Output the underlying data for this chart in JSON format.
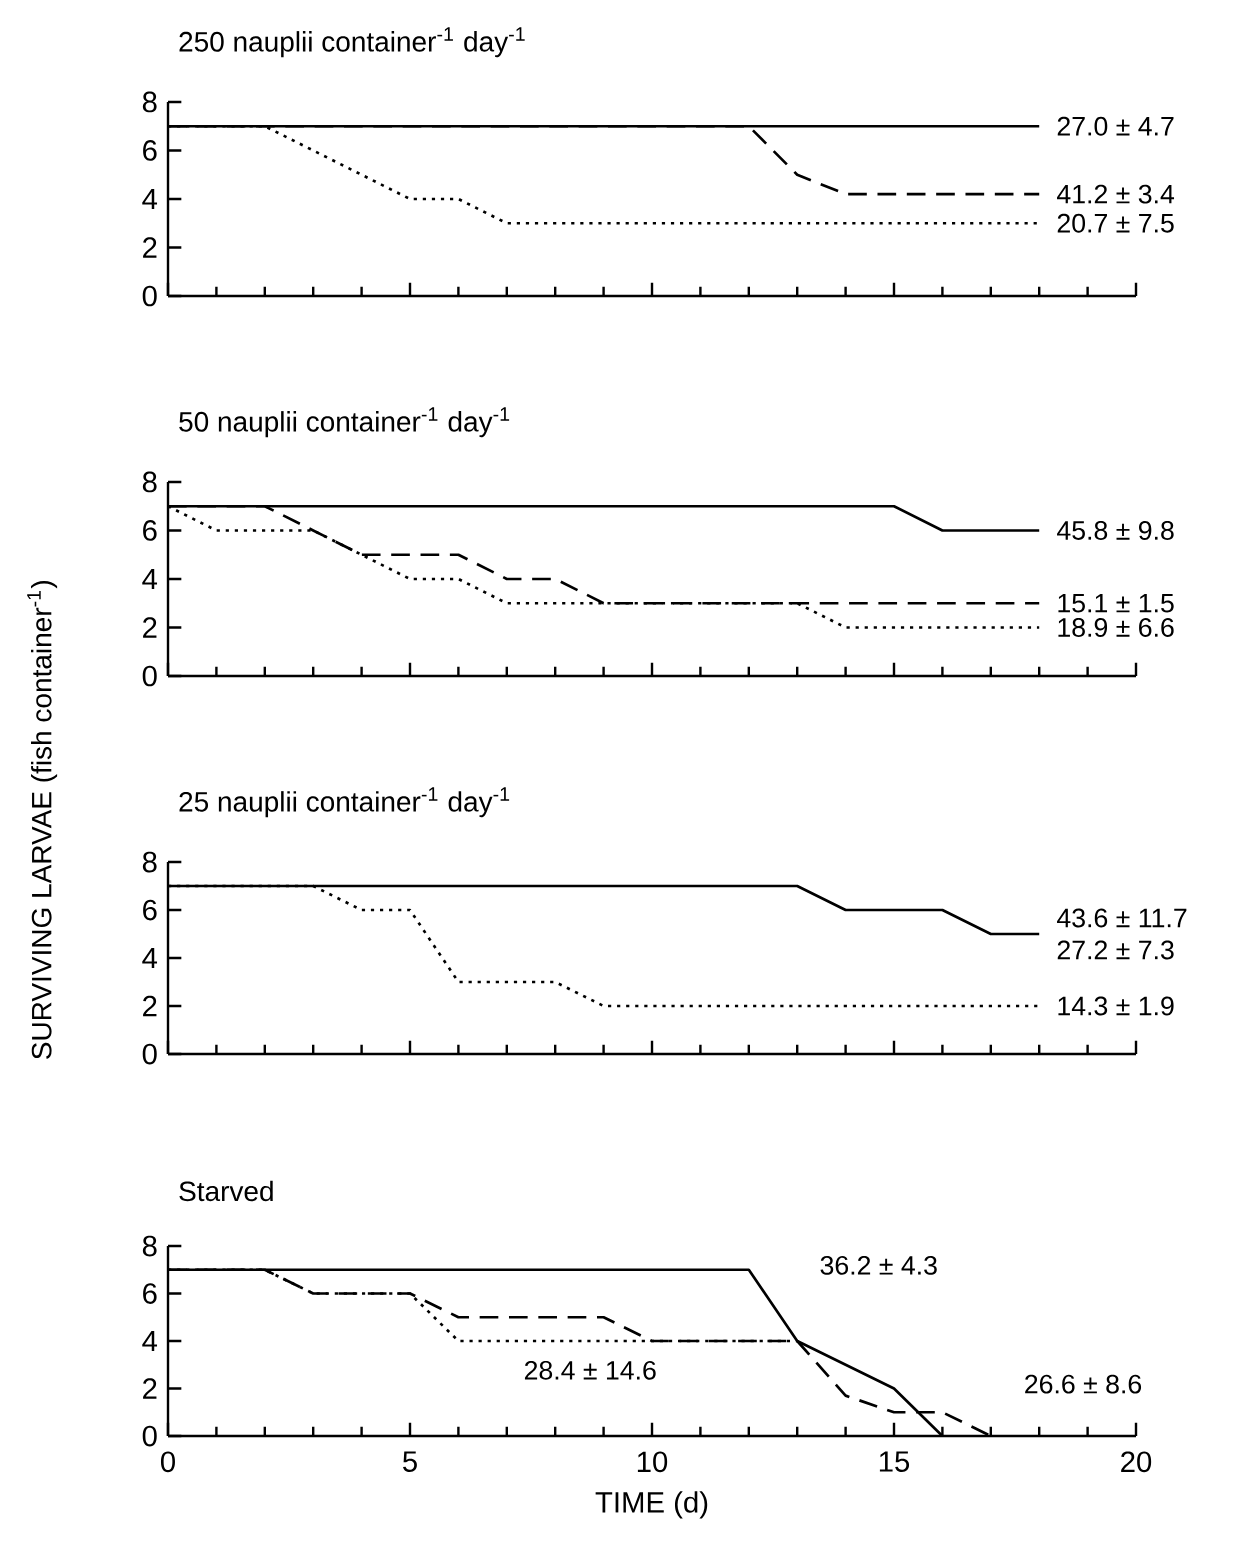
{
  "chart_data": [
    {
      "type": "line",
      "title": "250 nauplii  container$^{-1}$ day$^{-1}$",
      "xlim": [
        0,
        20
      ],
      "ylim": [
        0,
        8
      ],
      "xticks": [
        0,
        5,
        10,
        15,
        20
      ],
      "yticks": [
        0,
        2,
        4,
        6,
        8
      ],
      "tick_labels": "y",
      "series": [
        {
          "color": "#000000",
          "line_style": "solid",
          "x": [
            0,
            18
          ],
          "values": [
            7,
            7
          ]
        },
        {
          "color": "#000000",
          "line_style": "dashed",
          "x": [
            0,
            12,
            13,
            14,
            18
          ],
          "values": [
            7,
            7,
            5,
            4.2,
            4.2
          ]
        },
        {
          "color": "#000000",
          "line_style": "dotted",
          "x": [
            0,
            2,
            5,
            6,
            7,
            18
          ],
          "values": [
            7,
            7,
            4,
            4,
            3,
            3
          ]
        }
      ],
      "annotations": [
        {
          "text": "27.0 ± 4.7",
          "x": 18,
          "y": 7
        },
        {
          "text": "41.2 ± 3.4",
          "x": 18,
          "y": 4.2
        },
        {
          "text": "20.7 ± 7.5",
          "x": 18,
          "y": 3
        }
      ]
    },
    {
      "type": "line",
      "title": "50 nauplii  container$^{-1}$ day$^{-1}$",
      "xlim": [
        0,
        20
      ],
      "ylim": [
        0,
        8
      ],
      "xticks": [
        0,
        5,
        10,
        15,
        20
      ],
      "yticks": [
        0,
        2,
        4,
        6,
        8
      ],
      "tick_labels": "y",
      "series": [
        {
          "color": "#000000",
          "line_style": "solid",
          "x": [
            0,
            15,
            16,
            18
          ],
          "values": [
            7,
            7,
            6,
            6
          ]
        },
        {
          "color": "#000000",
          "line_style": "dashed",
          "x": [
            0,
            2,
            3,
            4,
            6,
            7,
            8,
            9,
            18
          ],
          "values": [
            7,
            7,
            6,
            5,
            5,
            4,
            4,
            3,
            3
          ]
        },
        {
          "color": "#000000",
          "line_style": "dotted",
          "x": [
            0,
            1,
            3,
            5,
            6,
            7,
            13,
            14,
            18
          ],
          "values": [
            7,
            6,
            6,
            4,
            4,
            3,
            3,
            2,
            2
          ]
        }
      ],
      "annotations": [
        {
          "text": "45.8 ± 9.8",
          "x": 18,
          "y": 6
        },
        {
          "text": "15.1 ± 1.5",
          "x": 18,
          "y": 3
        },
        {
          "text": "18.9 ± 6.6",
          "x": 18,
          "y": 2
        }
      ]
    },
    {
      "type": "line",
      "title": "25 nauplii  container$^{-1}$ day$^{-1}$",
      "ylabel": "SURVIVING  LARVAE   (fish  container$^{-1}$)",
      "xlim": [
        0,
        20
      ],
      "ylim": [
        0,
        8
      ],
      "xticks": [
        0,
        5,
        10,
        15,
        20
      ],
      "yticks": [
        0,
        2,
        4,
        6,
        8
      ],
      "tick_labels": "y",
      "series": [
        {
          "color": "#000000",
          "line_style": "solid",
          "x": [
            0,
            13,
            14,
            16,
            17,
            18
          ],
          "values": [
            7,
            7,
            6,
            6,
            5,
            5
          ]
        },
        {
          "color": "#000000",
          "line_style": "dotted",
          "x": [
            0,
            3,
            4,
            5,
            6,
            8,
            9,
            18
          ],
          "values": [
            7,
            7,
            6,
            6,
            3,
            3,
            2,
            2
          ]
        }
      ],
      "annotations": [
        {
          "text": "43.6 ± 11.7",
          "x": 18,
          "y": 5
        },
        {
          "text": "27.2 ± 7.3",
          "x": 18,
          "y": 5
        },
        {
          "text": "14.3 ± 1.9",
          "x": 18,
          "y": 2
        }
      ]
    },
    {
      "type": "line",
      "title": "Starved",
      "xlabel": "TIME (d)",
      "xlim": [
        0,
        20
      ],
      "ylim": [
        0,
        8
      ],
      "xticks": [
        0,
        5,
        10,
        15,
        20
      ],
      "yticks": [
        0,
        2,
        4,
        6,
        8
      ],
      "series": [
        {
          "color": "#000000",
          "line_style": "solid",
          "x": [
            0,
            12,
            13,
            15,
            16
          ],
          "values": [
            7,
            7,
            4,
            2,
            0
          ]
        },
        {
          "color": "#000000",
          "line_style": "dashed",
          "x": [
            0,
            2,
            3,
            5,
            6,
            9,
            10,
            13,
            14,
            15,
            16,
            17
          ],
          "values": [
            7,
            7,
            6,
            6,
            5,
            5,
            4,
            4,
            1.7,
            1,
            1,
            0
          ]
        },
        {
          "color": "#000000",
          "line_style": "dotted",
          "x": [
            0,
            2,
            3,
            5,
            6,
            13
          ],
          "values": [
            7,
            7,
            6,
            6,
            4,
            4
          ]
        }
      ],
      "annotations": [
        {
          "text": "36.2 ± 4.3",
          "x": 12.5,
          "y": 5.5
        },
        {
          "text": "28.4 ± 14.6",
          "x": 6,
          "y": 4
        },
        {
          "text": "26.6 ± 8.6",
          "x": 16.5,
          "y": 0.5
        }
      ]
    }
  ]
}
